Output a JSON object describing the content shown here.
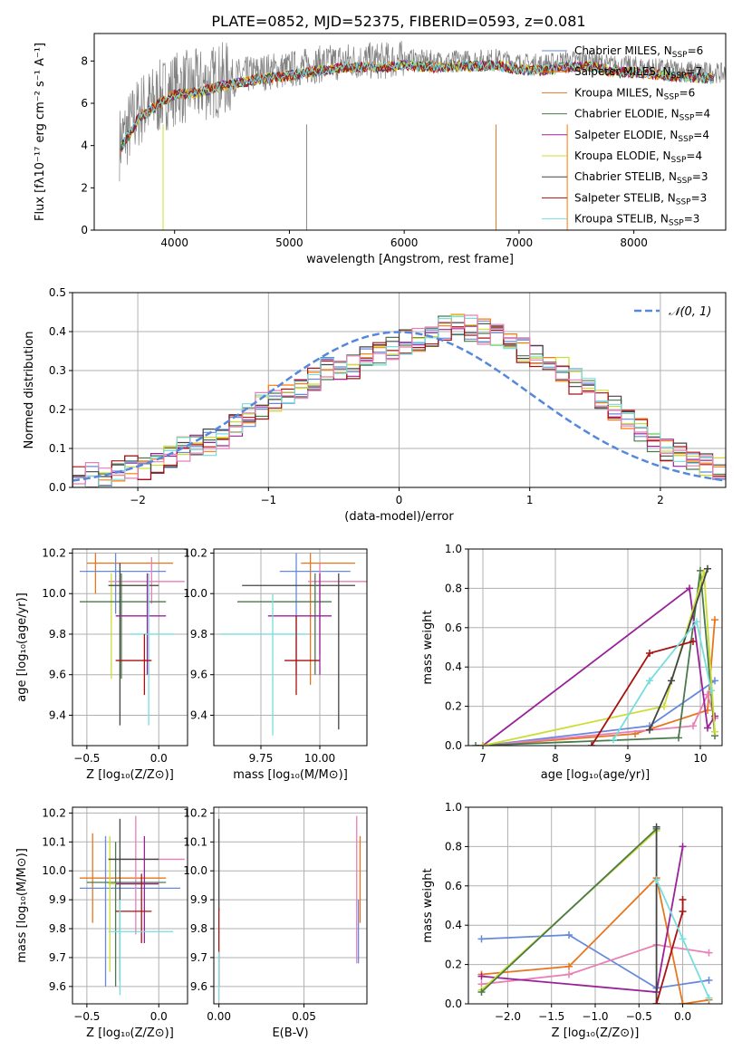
{
  "title": "PLATE=0852, MJD=52375, FIBERID=0593, z=0.081",
  "colors": {
    "Chabrier MILES": "#6688dd",
    "Salpeter MILES": "#ff7700",
    "Kroupa MILES": "#dd7a2a",
    "Chabrier ELODIE": "#4a7a4a",
    "Salpeter ELODIE": "#992299",
    "Kroupa ELODIE": "#ccdd33",
    "Chabrier STELIB": "#444444",
    "Salpeter STELIB": "#aa1111",
    "Kroupa STELIB": "#77dddd",
    "pink": "#e87fb5",
    "orange": "#e8761f",
    "grid": "#b0b0b0",
    "spectrum": "#808080"
  },
  "chart_data": [
    {
      "type": "line",
      "title": "PLATE=0852, MJD=52375, FIBERID=0593, z=0.081",
      "xlabel": "wavelength [Angstrom, rest frame]",
      "ylabel": "Flux [fλ10⁻¹⁷ erg cm⁻² s⁻¹ A⁻¹]",
      "xlim": [
        3300,
        8800
      ],
      "ylim": [
        0,
        9.3
      ],
      "xticks": [
        "4000",
        "5000",
        "6000",
        "7000",
        "8000"
      ],
      "yticks": [
        "0",
        "2",
        "4",
        "6",
        "8"
      ],
      "legend_position": "top-right",
      "legend": [
        "Chabrier MILES, N_SSP=6",
        "Salpeter MILES, N_SSP=7",
        "Kroupa MILES, N_SSP=6",
        "Chabrier ELODIE, N_SSP=4",
        "Salpeter ELODIE, N_SSP=4",
        "Kroupa ELODIE, N_SSP=4",
        "Chabrier STELIB, N_SSP=3",
        "Salpeter STELIB, N_SSP=3",
        "Kroupa STELIB, N_SSP=3"
      ],
      "continuum": {
        "x": [
          3520,
          3600,
          3700,
          3800,
          3900,
          4000,
          4200,
          4400,
          4600,
          4800,
          5000,
          5200,
          5500,
          5800,
          6000,
          6300,
          6600,
          6800,
          7000,
          7200,
          7400,
          7600,
          7800,
          8000,
          8300,
          8600,
          8800
        ],
        "y": [
          4.1,
          4.8,
          5.7,
          6.0,
          6.4,
          6.7,
          6.8,
          7.1,
          7.3,
          7.5,
          7.6,
          7.8,
          8.0,
          8.0,
          8.1,
          8.0,
          8.05,
          8.1,
          7.9,
          7.85,
          8.0,
          8.05,
          7.8,
          7.75,
          7.6,
          7.5,
          7.4
        ]
      }
    },
    {
      "type": "bar",
      "xlabel": "(data-model)/error",
      "ylabel": "Normed distribution",
      "xlim": [
        -2.5,
        2.5
      ],
      "ylim": [
        0,
        0.5
      ],
      "xticks": [
        "−2",
        "−1",
        "0",
        "1",
        "2"
      ],
      "yticks": [
        "0.0",
        "0.1",
        "0.2",
        "0.3",
        "0.4",
        "0.5"
      ],
      "legend_position": "top-right",
      "legend": [
        "𝒩(0, 1)"
      ],
      "bin_width": 0.1,
      "histogram_mean": [
        0.025,
        0.03,
        0.03,
        0.045,
        0.05,
        0.055,
        0.07,
        0.085,
        0.1,
        0.11,
        0.115,
        0.13,
        0.16,
        0.19,
        0.21,
        0.23,
        0.25,
        0.26,
        0.28,
        0.3,
        0.3,
        0.31,
        0.33,
        0.34,
        0.36,
        0.37,
        0.38,
        0.39,
        0.41,
        0.42,
        0.41,
        0.4,
        0.39,
        0.37,
        0.35,
        0.33,
        0.32,
        0.3,
        0.27,
        0.26,
        0.22,
        0.2,
        0.17,
        0.15,
        0.12,
        0.1,
        0.085,
        0.07,
        0.06,
        0.045
      ]
    },
    {
      "type": "scatter",
      "xlabel": "Z [log₁₀(Z/Z⊙)]",
      "ylabel": "age  [log₁₀(age/yr)]",
      "xlim": [
        -0.6,
        0.2
      ],
      "ylim": [
        9.25,
        10.22
      ],
      "xticks": [
        "−0.5",
        "0.0"
      ],
      "yticks": [
        "9.4",
        "9.6",
        "9.8",
        "10.0",
        "10.2"
      ]
    },
    {
      "type": "scatter",
      "xlabel": "mass [log₁₀(M/M⊙)]",
      "xlim": [
        9.55,
        10.2
      ],
      "ylim": [
        9.25,
        10.22
      ],
      "xticks": [
        "9.75",
        "10.00"
      ],
      "yticks": [
        "9.4",
        "9.6",
        "9.8",
        "10.0",
        "10.2"
      ]
    },
    {
      "type": "line",
      "xlabel": "age  [log₁₀(age/yr)]",
      "ylabel": "mass weight",
      "xlim": [
        6.8,
        10.3
      ],
      "ylim": [
        0,
        1.0
      ],
      "xticks": [
        "7",
        "8",
        "9",
        "10"
      ],
      "yticks": [
        "0.0",
        "0.2",
        "0.4",
        "0.6",
        "0.8",
        "1.0"
      ],
      "series": [
        {
          "color": "#6688dd",
          "x": [
            7.0,
            9.3,
            10.2
          ],
          "y": [
            0.0,
            0.1,
            0.33
          ]
        },
        {
          "color": "#e8761f",
          "x": [
            7.0,
            9.1,
            10.1,
            10.2
          ],
          "y": [
            0.0,
            0.06,
            0.18,
            0.64
          ]
        },
        {
          "color": "#e87fb5",
          "x": [
            7.0,
            9.9,
            10.1,
            10.2
          ],
          "y": [
            0.0,
            0.1,
            0.26,
            0.14
          ]
        },
        {
          "color": "#4a7a4a",
          "x": [
            6.9,
            9.7,
            10.0,
            10.2
          ],
          "y": [
            0.0,
            0.04,
            0.89,
            0.05
          ]
        },
        {
          "color": "#992299",
          "x": [
            7.0,
            9.85,
            10.1,
            10.2
          ],
          "y": [
            0.0,
            0.8,
            0.09,
            0.15
          ]
        },
        {
          "color": "#ccdd33",
          "x": [
            7.0,
            9.5,
            10.05,
            10.2
          ],
          "y": [
            0.0,
            0.2,
            0.88,
            0.07
          ]
        },
        {
          "color": "#444444",
          "x": [
            9.3,
            9.6,
            10.1
          ],
          "y": [
            0.08,
            0.33,
            0.9
          ]
        },
        {
          "color": "#aa1111",
          "x": [
            8.5,
            9.3,
            9.9
          ],
          "y": [
            0.0,
            0.47,
            0.53
          ]
        },
        {
          "color": "#77dddd",
          "x": [
            8.8,
            9.3,
            9.95,
            10.15
          ],
          "y": [
            0.03,
            0.33,
            0.63,
            0.28
          ]
        }
      ]
    },
    {
      "type": "scatter",
      "xlabel": "Z [log₁₀(Z/Z⊙)]",
      "ylabel": "mass [log₁₀(M/M⊙)]",
      "xlim": [
        -0.6,
        0.2
      ],
      "ylim": [
        9.54,
        10.22
      ],
      "xticks": [
        "−0.5",
        "0.0"
      ],
      "yticks": [
        "9.6",
        "9.7",
        "9.8",
        "9.9",
        "10.0",
        "10.1",
        "10.2"
      ]
    },
    {
      "type": "scatter",
      "xlabel": "E(B-V)",
      "xlim": [
        -0.003,
        0.087
      ],
      "ylim": [
        9.54,
        10.22
      ],
      "xticks": [
        "0.00",
        "0.05"
      ],
      "yticks": [
        "9.6",
        "9.7",
        "9.8",
        "9.9",
        "10.0",
        "10.1",
        "10.2"
      ]
    },
    {
      "type": "line",
      "xlabel": "Z [log₁₀(Z/Z⊙)]",
      "ylabel": "mass weight",
      "xlim": [
        -2.45,
        0.45
      ],
      "ylim": [
        0,
        1.0
      ],
      "xticks": [
        "−2.0",
        "−1.5",
        "−1.0",
        "−0.5",
        "0.0"
      ],
      "yticks": [
        "0.0",
        "0.2",
        "0.4",
        "0.6",
        "0.8",
        "1.0"
      ],
      "series": [
        {
          "color": "#6688dd",
          "x": [
            -2.3,
            -1.3,
            -0.3,
            0.3
          ],
          "y": [
            0.33,
            0.35,
            0.08,
            0.12
          ]
        },
        {
          "color": "#e8761f",
          "x": [
            -2.3,
            -1.3,
            -0.3,
            0.0,
            0.3
          ],
          "y": [
            0.15,
            0.19,
            0.64,
            0.0,
            0.02
          ]
        },
        {
          "color": "#e87fb5",
          "x": [
            -2.3,
            -1.3,
            -0.3,
            0.3
          ],
          "y": [
            0.1,
            0.15,
            0.3,
            0.26
          ]
        },
        {
          "color": "#992299",
          "x": [
            -2.3,
            -0.3,
            0.0
          ],
          "y": [
            0.14,
            0.06,
            0.8
          ]
        },
        {
          "color": "#ccdd33",
          "x": [
            -2.3,
            -0.3
          ],
          "y": [
            0.07,
            0.88
          ]
        },
        {
          "color": "#4a7a4a",
          "x": [
            -2.3,
            -0.3
          ],
          "y": [
            0.06,
            0.89
          ]
        },
        {
          "color": "#444444",
          "x": [
            -0.3,
            -0.3
          ],
          "y": [
            0.0,
            0.9
          ]
        },
        {
          "color": "#aa1111",
          "x": [
            -0.3,
            0.0,
            0.0
          ],
          "y": [
            0.0,
            0.47,
            0.53
          ]
        },
        {
          "color": "#77dddd",
          "x": [
            -0.3,
            0.0,
            0.3
          ],
          "y": [
            0.63,
            0.33,
            0.03
          ]
        }
      ]
    }
  ]
}
